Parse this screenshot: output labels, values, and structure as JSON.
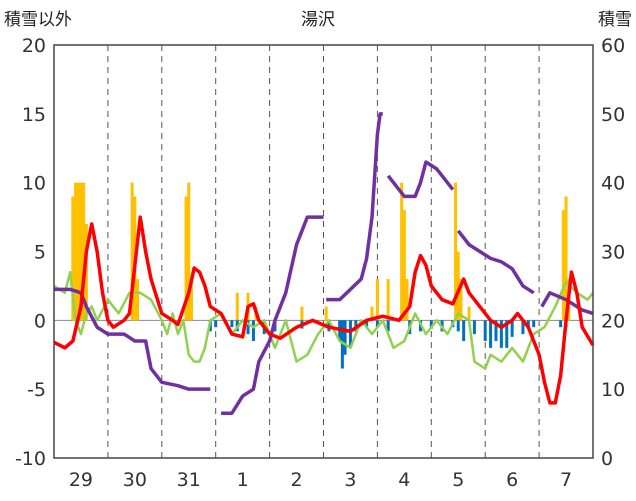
{
  "chart_data": {
    "type": "line",
    "title": "湯沢",
    "ylabel_left": "積雪以外",
    "ylabel_right": "積雪",
    "ylim_left": [
      -10,
      20
    ],
    "ylim_right": [
      0,
      60
    ],
    "yticks_left": [
      "20",
      "15",
      "10",
      "5",
      "0",
      "-5",
      "-10"
    ],
    "yticks_right": [
      "60",
      "50",
      "40",
      "30",
      "20",
      "10",
      "0"
    ],
    "x_categories": [
      "29",
      "30",
      "31",
      "1",
      "2",
      "3",
      "4",
      "5",
      "6",
      "7"
    ],
    "x_unit": "day (day 29 begins at 0)",
    "xlim": [
      -0.5,
      9.5
    ],
    "grid": "dashed vertical lines at each day boundary",
    "colors": {
      "temperature": "#ff0000",
      "snow_depth": "#7030a0",
      "humidity_index": "#92d050",
      "precip_positive": "#ffc000",
      "precip_negative": "#0070c0"
    },
    "series": [
      {
        "color": "#ff0000",
        "axis": "left",
        "points": [
          [
            -0.5,
            -1.6
          ],
          [
            -0.3,
            -2
          ],
          [
            -0.15,
            -1.5
          ],
          [
            0,
            1
          ],
          [
            0.1,
            5
          ],
          [
            0.2,
            7
          ],
          [
            0.3,
            5
          ],
          [
            0.4,
            2
          ],
          [
            0.5,
            0
          ],
          [
            0.6,
            -0.5
          ],
          [
            0.8,
            0
          ],
          [
            0.9,
            0.5
          ],
          [
            1,
            4
          ],
          [
            1.1,
            7.5
          ],
          [
            1.2,
            5
          ],
          [
            1.3,
            3
          ],
          [
            1.5,
            0.5
          ],
          [
            1.7,
            0
          ],
          [
            1.8,
            -0.3
          ],
          [
            2,
            2
          ],
          [
            2.1,
            3.8
          ],
          [
            2.2,
            3.5
          ],
          [
            2.3,
            2.5
          ],
          [
            2.4,
            1
          ],
          [
            2.6,
            0.5
          ],
          [
            2.8,
            -1
          ],
          [
            3,
            -1.2
          ],
          [
            3.1,
            1
          ],
          [
            3.2,
            1.2
          ],
          [
            3.3,
            0
          ],
          [
            3.5,
            -1
          ],
          [
            3.7,
            -1.3
          ],
          [
            4,
            -0.5
          ],
          [
            4.3,
            0
          ],
          [
            4.6,
            -0.5
          ],
          [
            5,
            -0.8
          ],
          [
            5.3,
            0
          ],
          [
            5.6,
            0.3
          ],
          [
            5.9,
            0
          ],
          [
            6.1,
            1
          ],
          [
            6.2,
            3.5
          ],
          [
            6.3,
            4.7
          ],
          [
            6.4,
            4
          ],
          [
            6.5,
            2.5
          ],
          [
            6.7,
            1.5
          ],
          [
            6.9,
            1.2
          ],
          [
            7.1,
            3
          ],
          [
            7.2,
            2
          ],
          [
            7.4,
            1
          ],
          [
            7.6,
            0
          ],
          [
            7.8,
            -0.5
          ],
          [
            8,
            0
          ],
          [
            8.1,
            0.5
          ],
          [
            8.3,
            -0.5
          ],
          [
            8.5,
            -2.5
          ],
          [
            8.6,
            -4.5
          ],
          [
            8.7,
            -6
          ],
          [
            8.8,
            -6
          ],
          [
            8.9,
            -4
          ],
          [
            9.0,
            0
          ],
          [
            9.1,
            3.5
          ],
          [
            9.2,
            2
          ],
          [
            9.3,
            -0.5
          ],
          [
            9.5,
            -1.8
          ]
        ]
      },
      {
        "color": "#7030a0",
        "axis": "right",
        "segments": [
          [
            [
              -0.5,
              24.5
            ],
            [
              -0.2,
              24.5
            ],
            [
              0,
              24
            ],
            [
              0.1,
              22
            ],
            [
              0.3,
              19
            ],
            [
              0.5,
              18
            ],
            [
              0.8,
              18
            ],
            [
              1,
              17
            ],
            [
              1.2,
              17
            ],
            [
              1.3,
              13
            ],
            [
              1.5,
              11
            ],
            [
              1.8,
              10.5
            ],
            [
              2,
              10
            ],
            [
              2.2,
              10
            ],
            [
              2.4,
              10
            ]
          ],
          [
            [
              2.6,
              6.5
            ],
            [
              2.8,
              6.5
            ],
            [
              3,
              9
            ],
            [
              3.2,
              10
            ],
            [
              3.3,
              14
            ],
            [
              3.5,
              17
            ],
            [
              3.6,
              20
            ],
            [
              3.8,
              24
            ],
            [
              4,
              31
            ],
            [
              4.2,
              35
            ],
            [
              4.4,
              35
            ],
            [
              4.5,
              35
            ]
          ],
          [
            [
              4.55,
              23
            ],
            [
              4.8,
              23
            ],
            [
              5,
              24.5
            ],
            [
              5.2,
              26
            ],
            [
              5.3,
              29
            ],
            [
              5.4,
              35
            ],
            [
              5.5,
              47
            ],
            [
              5.55,
              50
            ],
            [
              5.6,
              50
            ]
          ],
          [
            [
              5.7,
              41
            ],
            [
              5.9,
              39
            ],
            [
              6,
              38
            ],
            [
              6.2,
              38
            ],
            [
              6.3,
              40
            ],
            [
              6.4,
              43
            ],
            [
              6.6,
              42
            ],
            [
              6.8,
              40
            ],
            [
              6.9,
              39
            ]
          ],
          [
            [
              7,
              33
            ],
            [
              7.1,
              32
            ],
            [
              7.2,
              31
            ],
            [
              7.4,
              30
            ],
            [
              7.6,
              29
            ],
            [
              7.8,
              28.5
            ],
            [
              8,
              27.5
            ],
            [
              8.2,
              25
            ],
            [
              8.4,
              24
            ]
          ],
          [
            [
              8.55,
              22
            ],
            [
              8.7,
              24
            ],
            [
              9,
              23
            ],
            [
              9.2,
              22
            ],
            [
              9.3,
              21.5
            ],
            [
              9.5,
              21
            ]
          ]
        ]
      },
      {
        "color": "#92d050",
        "axis": "left",
        "points": [
          [
            -0.5,
            2.5
          ],
          [
            -0.3,
            2
          ],
          [
            -0.2,
            3.5
          ],
          [
            -0.1,
            0
          ],
          [
            0,
            -1
          ],
          [
            0.1,
            0.5
          ],
          [
            0.2,
            1
          ],
          [
            0.3,
            0
          ],
          [
            0.5,
            1.5
          ],
          [
            0.7,
            0.5
          ],
          [
            0.9,
            2
          ],
          [
            1.1,
            2
          ],
          [
            1.3,
            1.5
          ],
          [
            1.5,
            0
          ],
          [
            1.6,
            -1
          ],
          [
            1.7,
            0.5
          ],
          [
            1.8,
            -1
          ],
          [
            1.9,
            0
          ],
          [
            2,
            -2.5
          ],
          [
            2.1,
            -3
          ],
          [
            2.2,
            -3
          ],
          [
            2.3,
            -2
          ],
          [
            2.4,
            0
          ],
          [
            2.6,
            0.5
          ],
          [
            2.8,
            -1
          ],
          [
            3,
            0
          ],
          [
            3.2,
            -0.5
          ],
          [
            3.4,
            0
          ],
          [
            3.6,
            -2
          ],
          [
            3.8,
            0
          ],
          [
            4,
            -3
          ],
          [
            4.2,
            -2.5
          ],
          [
            4.4,
            -1
          ],
          [
            4.6,
            0
          ],
          [
            4.8,
            -1.5
          ],
          [
            5,
            -2
          ],
          [
            5.2,
            0
          ],
          [
            5.4,
            -1
          ],
          [
            5.6,
            0
          ],
          [
            5.8,
            -2
          ],
          [
            6,
            -1.5
          ],
          [
            6.2,
            0.5
          ],
          [
            6.4,
            -1
          ],
          [
            6.6,
            0
          ],
          [
            6.8,
            -1
          ],
          [
            7,
            0.5
          ],
          [
            7.2,
            0
          ],
          [
            7.3,
            -3
          ],
          [
            7.5,
            -3.5
          ],
          [
            7.6,
            -2.5
          ],
          [
            7.8,
            -3
          ],
          [
            8,
            -2
          ],
          [
            8.2,
            -3
          ],
          [
            8.4,
            -1
          ],
          [
            8.6,
            -0.5
          ],
          [
            8.8,
            1
          ],
          [
            9,
            2.8
          ],
          [
            9.2,
            2
          ],
          [
            9.4,
            1.5
          ],
          [
            9.5,
            2
          ]
        ]
      }
    ],
    "bars_positive": [
      [
        -0.15,
        9
      ],
      [
        -0.1,
        10
      ],
      [
        -0.05,
        10
      ],
      [
        0,
        10
      ],
      [
        0.05,
        10
      ],
      [
        0.1,
        7
      ],
      [
        0.95,
        10
      ],
      [
        1.0,
        9
      ],
      [
        1.05,
        3
      ],
      [
        1.95,
        9
      ],
      [
        2.0,
        10
      ],
      [
        2.05,
        3
      ],
      [
        2.9,
        2
      ],
      [
        3.1,
        2
      ],
      [
        3.25,
        1
      ],
      [
        4.1,
        1
      ],
      [
        4.55,
        1
      ],
      [
        5.4,
        1
      ],
      [
        5.5,
        3
      ],
      [
        5.7,
        3
      ],
      [
        5.95,
        10
      ],
      [
        6.0,
        8
      ],
      [
        6.05,
        3
      ],
      [
        6.95,
        10
      ],
      [
        7.0,
        5
      ],
      [
        7.05,
        3
      ],
      [
        7.2,
        1
      ],
      [
        8.95,
        8
      ],
      [
        9.0,
        9
      ],
      [
        9.05,
        3
      ]
    ],
    "bars_negative": [
      [
        2.4,
        -0.8
      ],
      [
        2.5,
        -0.5
      ],
      [
        2.8,
        -0.5
      ],
      [
        2.9,
        -0.8
      ],
      [
        3.1,
        -1
      ],
      [
        3.2,
        -1.5
      ],
      [
        3.4,
        -1
      ],
      [
        3.6,
        -0.8
      ],
      [
        4.1,
        -0.6
      ],
      [
        4.6,
        -0.8
      ],
      [
        4.8,
        -1.5
      ],
      [
        4.85,
        -3.5
      ],
      [
        4.9,
        -2.5
      ],
      [
        5.0,
        -2
      ],
      [
        5.1,
        -0.8
      ],
      [
        5.3,
        -0.5
      ],
      [
        5.5,
        -0.5
      ],
      [
        5.7,
        -0.8
      ],
      [
        6.1,
        -1
      ],
      [
        6.3,
        -0.8
      ],
      [
        6.5,
        -0.6
      ],
      [
        6.7,
        -0.8
      ],
      [
        6.9,
        -0.5
      ],
      [
        7.0,
        -0.8
      ],
      [
        7.1,
        -1.5
      ],
      [
        7.3,
        -1
      ],
      [
        7.5,
        -1.5
      ],
      [
        7.6,
        -2
      ],
      [
        7.7,
        -1.5
      ],
      [
        7.8,
        -2
      ],
      [
        7.9,
        -2
      ],
      [
        8.0,
        -1.2
      ],
      [
        8.2,
        -1
      ],
      [
        8.3,
        -0.5
      ],
      [
        8.4,
        -0.5
      ],
      [
        8.9,
        -0.5
      ],
      [
        9.0,
        -0.5
      ]
    ]
  }
}
